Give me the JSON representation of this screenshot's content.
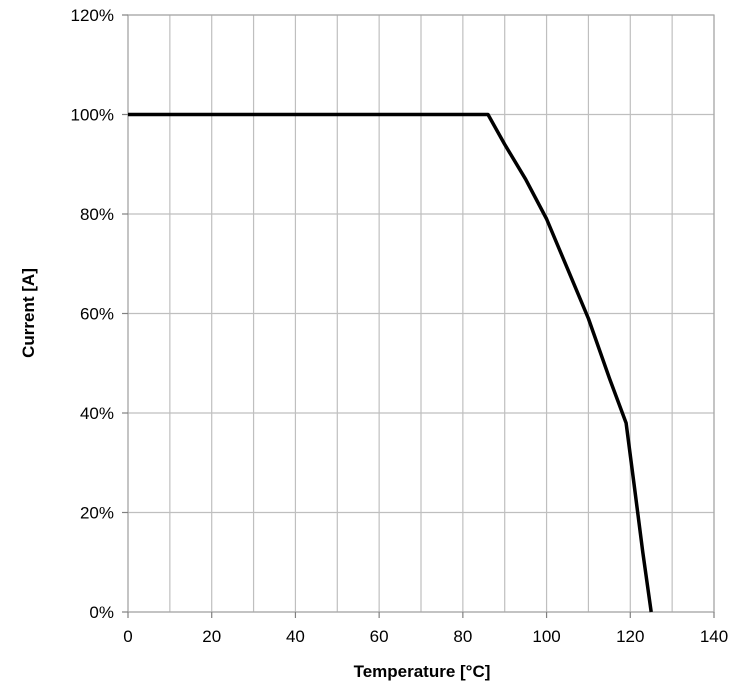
{
  "chart_data": {
    "type": "line",
    "title": "",
    "xlabel": "Temperature [°C]",
    "ylabel": "Current [A]",
    "xlim": [
      0,
      140
    ],
    "ylim": [
      0,
      120
    ],
    "x_ticks": [
      0,
      20,
      40,
      60,
      80,
      100,
      120,
      140
    ],
    "x_tick_labels": [
      "0",
      "20",
      "40",
      "60",
      "80",
      "100",
      "120",
      "140"
    ],
    "y_ticks": [
      0,
      20,
      40,
      60,
      80,
      100,
      120
    ],
    "y_tick_labels": [
      "0%",
      "20%",
      "40%",
      "60%",
      "80%",
      "100%",
      "120%"
    ],
    "x_grid_step": 10,
    "y_grid_step": 20,
    "grid": true,
    "legend": "none",
    "line_color": "#000000",
    "grid_color": "#bfbfbf",
    "series": [
      {
        "x": [
          0,
          84,
          86,
          90,
          95,
          100,
          105,
          110,
          115,
          119,
          121,
          123,
          125
        ],
        "y": [
          100,
          100,
          100,
          94,
          87,
          79,
          69,
          59,
          47,
          38,
          25,
          12,
          0
        ]
      }
    ]
  }
}
